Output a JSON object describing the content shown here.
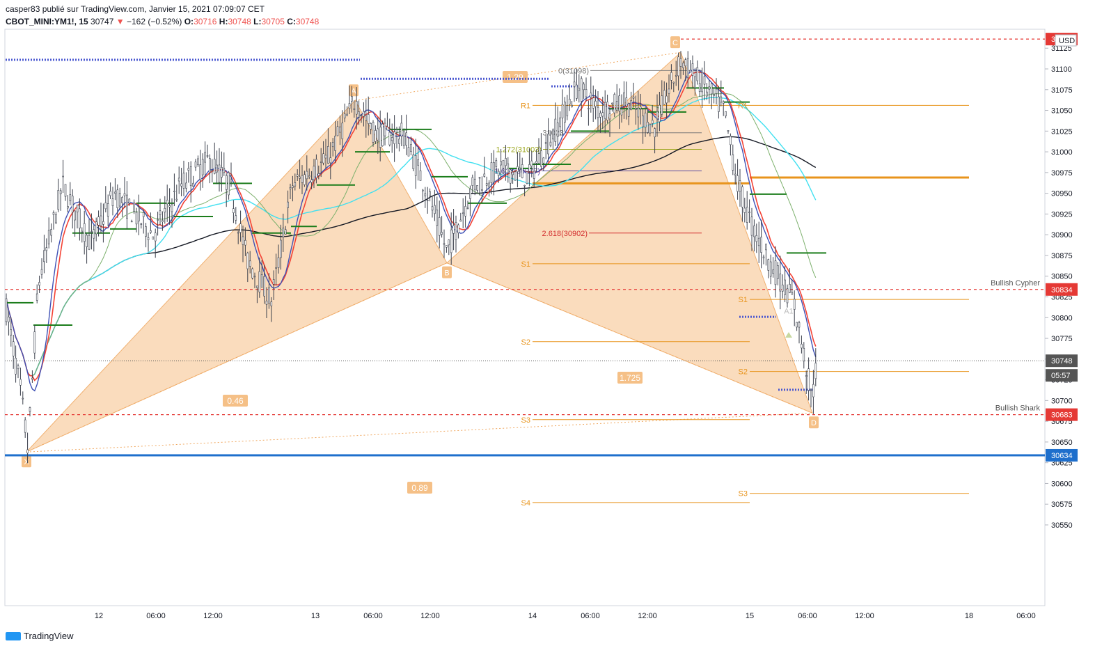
{
  "header": {
    "publisher": "casper83 publié sur TradingView.com, Janvier 15, 2021 07:09:07 CET",
    "symbol": "CBOT_MINI:YM1!, 15",
    "last": "30747",
    "arrow": "▼",
    "change": "−162 (−0.52%)",
    "o_label": "O:",
    "o_val": "30716",
    "h_label": "H:",
    "h_val": "30748",
    "l_label": "L:",
    "l_val": "30705",
    "c_label": "C:",
    "c_val": "30748"
  },
  "footer": {
    "brand": "TradingView",
    "logo_icon": "tradingview-logo-icon"
  },
  "colors": {
    "pattern_fill": "#f5c087",
    "ema_fast": "#f44336",
    "ema_slow": "#3f51b5",
    "sma_cyan": "#40e0f0",
    "sma_black": "#131722",
    "sma_green": "#7cb06c",
    "support_blue": "#1e6fcc",
    "red_dash": "#e53935",
    "pivot_orange": "#e8941c"
  },
  "chart_data": {
    "type": "candlestick",
    "symbol": "CBOT_MINI:YM1!",
    "timeframe": "15",
    "currency": "USD",
    "ylim": [
      30530,
      31140
    ],
    "y_ticks": [
      30550,
      30575,
      30600,
      30625,
      30650,
      30675,
      30700,
      30725,
      30750,
      30775,
      30800,
      30825,
      30850,
      30875,
      30900,
      30925,
      30950,
      30975,
      31000,
      31025,
      31050,
      31075,
      31100,
      31125
    ],
    "x_ticks": [
      "12",
      "06:00",
      "12:00",
      "13",
      "06:00",
      "12:00",
      "14",
      "06:00",
      "12:00",
      "15",
      "06:00",
      "12:00",
      "18",
      "06:00"
    ],
    "price_labels": [
      {
        "value": "31136",
        "color": "#e53935"
      },
      {
        "value": "30834",
        "color": "#e53935"
      },
      {
        "value": "30748",
        "color": "#555555"
      },
      {
        "value": "05:57",
        "color": "#555555"
      },
      {
        "value": "30683",
        "color": "#e53935"
      },
      {
        "value": "30634",
        "color": "#1e6fcc"
      }
    ],
    "horizontal_levels": [
      {
        "price": 31136,
        "style": "dashed",
        "color": "#e53935"
      },
      {
        "price": 30834,
        "style": "dashed",
        "color": "#e53935",
        "label": "Bullish Cypher"
      },
      {
        "price": 30683,
        "style": "dashed",
        "color": "#e53935",
        "label": "Bullish Shark"
      },
      {
        "price": 30634,
        "style": "solid",
        "color": "#1e6fcc"
      },
      {
        "price": 30748,
        "style": "dotted",
        "color": "#555555"
      }
    ],
    "harmonic_points": [
      {
        "label": "X",
        "price": 30638
      },
      {
        "label": "A",
        "price": 31062
      },
      {
        "label": "B",
        "price": 30866
      },
      {
        "label": "C",
        "price": 31120
      },
      {
        "label": "D",
        "price": 30685
      }
    ],
    "ratios": [
      "1.29",
      "0.46",
      "1.725",
      "0.89"
    ],
    "fib_levels": [
      {
        "label": "0(31098)",
        "price": 31098
      },
      {
        "label": "31023",
        "price": 31023
      },
      {
        "label": "1.272(31003)",
        "price": 31003
      },
      {
        "label": "1.618(30977)",
        "price": 30977
      },
      {
        "label": "2.618(30902)",
        "price": 30902
      }
    ],
    "pivots_left": [
      {
        "label": "R1",
        "price": 31056
      },
      {
        "label": "S1",
        "price": 30865
      },
      {
        "label": "S2",
        "price": 30771
      },
      {
        "label": "S3",
        "price": 30677
      },
      {
        "label": "S4",
        "price": 30577
      }
    ],
    "pivots_right": [
      {
        "label": "R1",
        "price": 31056
      },
      {
        "label": "S1",
        "price": 30822
      },
      {
        "label": "S2",
        "price": 30735
      },
      {
        "label": "S3",
        "price": 30588
      }
    ],
    "marker": "A1"
  }
}
